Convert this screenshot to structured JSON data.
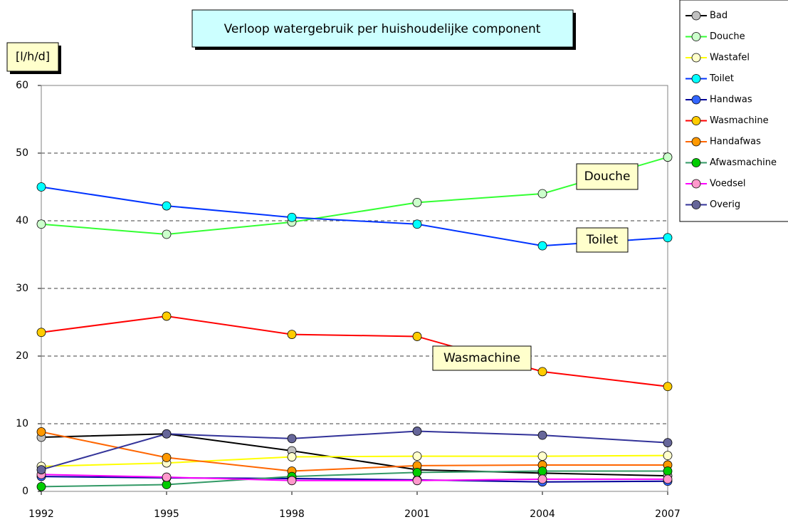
{
  "chart_data": {
    "type": "line",
    "title": "Verloop watergebruik per huishoudelijke component",
    "y_label": "[l/h/d]",
    "x": [
      1992,
      1995,
      1998,
      2001,
      2004,
      2007
    ],
    "xlim": [
      1992,
      2007
    ],
    "xticks": [
      1992,
      1995,
      1998,
      2001,
      2004,
      2007
    ],
    "ylim": [
      0,
      60
    ],
    "yticks": [
      0,
      10,
      20,
      30,
      40,
      50,
      60
    ],
    "grid": true,
    "legend": "right",
    "series": [
      {
        "name": "Bad",
        "color": "#000000",
        "marker_color": "#c0c0c0",
        "values": [
          8.0,
          8.5,
          6.0,
          3.2,
          2.7,
          2.3
        ]
      },
      {
        "name": "Douche",
        "color": "#33ff33",
        "marker_color": "#ccffcc",
        "values": [
          39.5,
          38.0,
          39.8,
          42.7,
          44.0,
          49.4
        ]
      },
      {
        "name": "Wastafel",
        "color": "#ffff00",
        "marker_color": "#ffffcc",
        "values": [
          3.7,
          4.2,
          5.1,
          5.2,
          5.2,
          5.3
        ]
      },
      {
        "name": "Toilet",
        "color": "#0033ff",
        "marker_color": "#00ffff",
        "values": [
          45.0,
          42.2,
          40.5,
          39.5,
          36.3,
          37.5
        ]
      },
      {
        "name": "Handwas",
        "color": "#000099",
        "marker_color": "#3366ff",
        "values": [
          2.2,
          2.0,
          1.9,
          1.7,
          1.4,
          1.5
        ]
      },
      {
        "name": "Wasmachine",
        "color": "#ff0000",
        "marker_color": "#ffcc00",
        "values": [
          23.5,
          25.9,
          23.2,
          22.9,
          17.7,
          15.5
        ]
      },
      {
        "name": "Handafwas",
        "color": "#ff6600",
        "marker_color": "#ff9900",
        "values": [
          8.8,
          5.0,
          3.0,
          3.8,
          3.9,
          3.9
        ]
      },
      {
        "name": "Afwasmachine",
        "color": "#339966",
        "marker_color": "#00cc00",
        "values": [
          0.7,
          1.0,
          2.2,
          2.8,
          3.0,
          3.0
        ]
      },
      {
        "name": "Voedsel",
        "color": "#ff00ff",
        "marker_color": "#ff99cc",
        "values": [
          2.5,
          2.1,
          1.6,
          1.6,
          1.8,
          1.8
        ]
      },
      {
        "name": "Overig",
        "color": "#333399",
        "marker_color": "#666699",
        "values": [
          3.2,
          8.5,
          7.8,
          8.9,
          8.3,
          7.2
        ]
      }
    ],
    "annotations": [
      "Douche",
      "Toilet",
      "Wasmachine"
    ]
  }
}
